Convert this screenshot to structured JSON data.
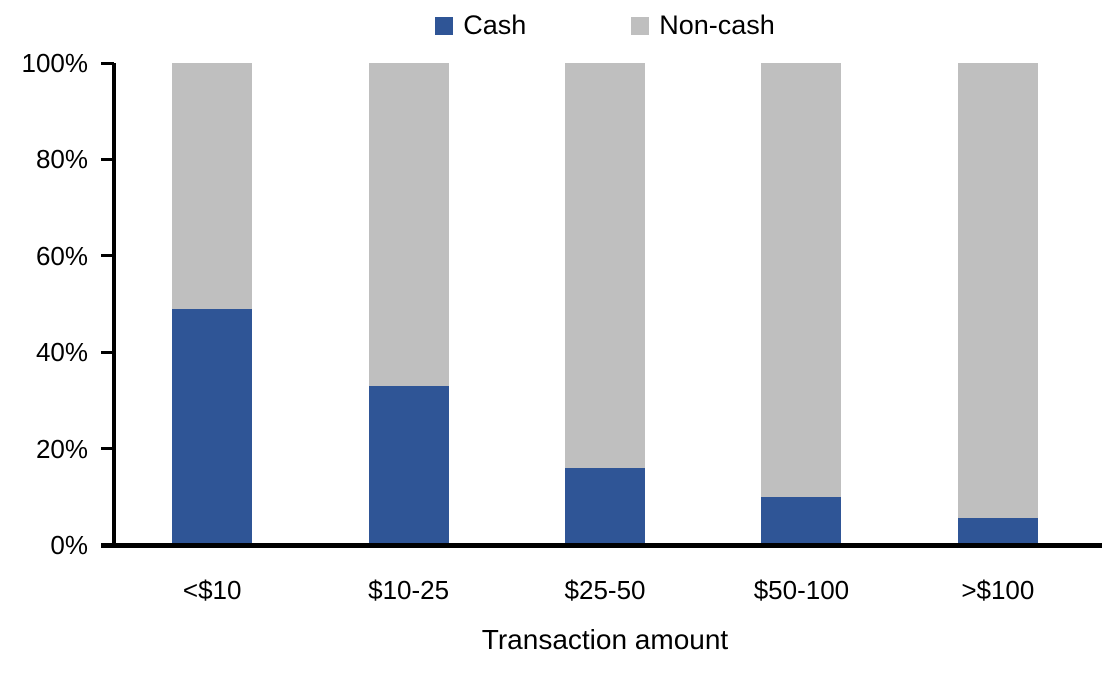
{
  "chart_data": {
    "type": "bar",
    "stacked": true,
    "percent_stacked": true,
    "title": "",
    "xlabel": "Transaction amount",
    "ylabel": "",
    "categories": [
      "<$10",
      "$10-25",
      "$25-50",
      "$50-100",
      ">$100"
    ],
    "series": [
      {
        "name": "Cash",
        "color": "#2F5596",
        "values": [
          49,
          33,
          16,
          10,
          5.5
        ]
      },
      {
        "name": "Non-cash",
        "color": "#BFBFBF",
        "values": [
          51,
          67,
          84,
          90,
          94.5
        ]
      }
    ],
    "ylim": [
      0,
      100
    ],
    "yticks": [
      "0%",
      "20%",
      "40%",
      "60%",
      "80%",
      "100%"
    ],
    "grid": false,
    "legend_position": "top",
    "axis_color": "#000000",
    "text_color": "#000000",
    "background_color": "#FFFFFF"
  }
}
